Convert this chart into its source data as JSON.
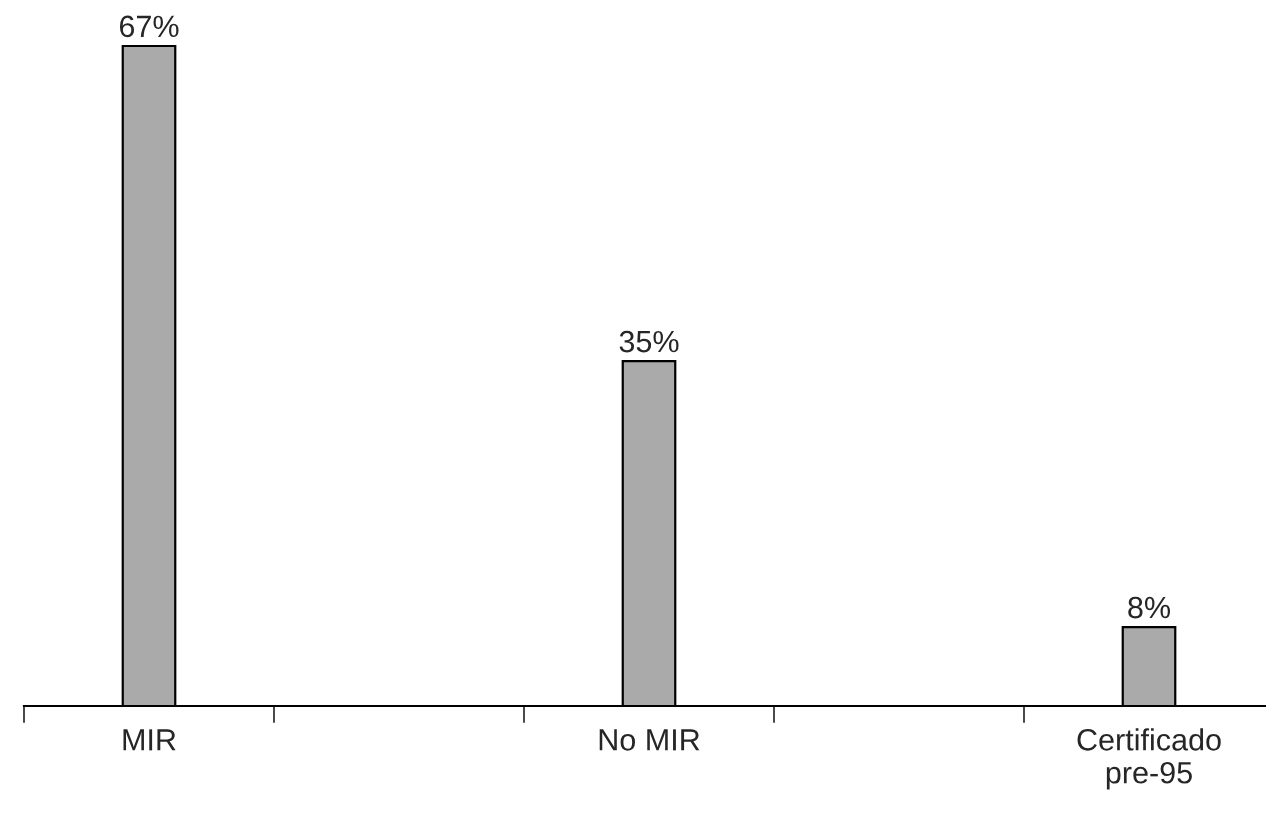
{
  "chart_data": {
    "type": "bar",
    "categories": [
      "MIR",
      null,
      "No MIR",
      null,
      "Certificado\npre-95"
    ],
    "values": [
      67,
      null,
      35,
      null,
      8
    ],
    "color": "#aaaaaa",
    "value_labels": [
      "67%",
      null,
      "35%",
      null,
      "8%"
    ],
    "grid": false
  }
}
